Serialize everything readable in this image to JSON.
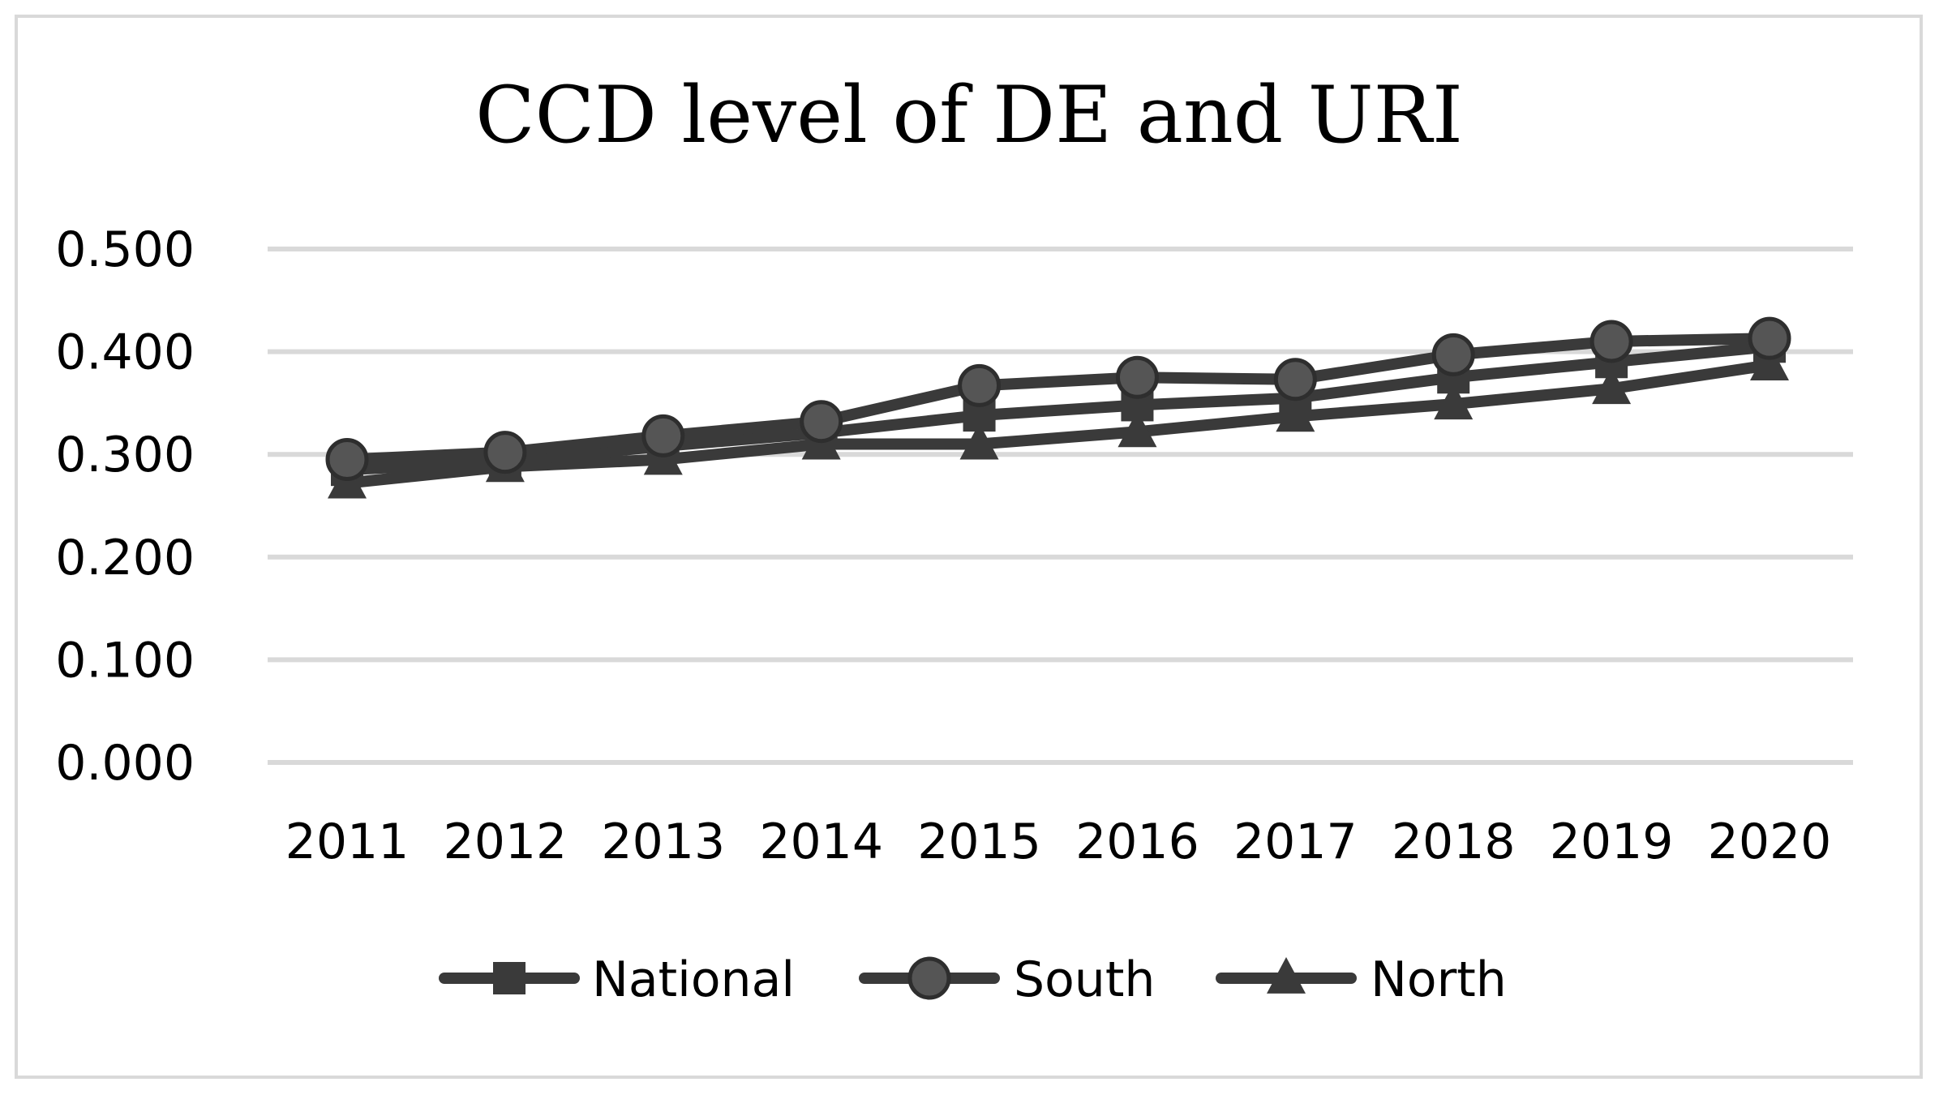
{
  "chart_data": {
    "type": "line",
    "title": "CCD level of DE and URI",
    "xlabel": "",
    "ylabel": "",
    "categories": [
      "2011",
      "2012",
      "2013",
      "2014",
      "2015",
      "2016",
      "2017",
      "2018",
      "2019",
      "2020"
    ],
    "y_ticks": [
      "0.000",
      "0.100",
      "0.200",
      "0.300",
      "0.400",
      "0.500"
    ],
    "ylim": [
      0,
      0.5
    ],
    "grid": true,
    "legend_position": "bottom",
    "series": [
      {
        "name": "National",
        "marker": "square",
        "color": "#3a3a3a",
        "values": [
          0.285,
          0.293,
          0.308,
          0.321,
          0.338,
          0.348,
          0.355,
          0.375,
          0.39,
          0.405
        ]
      },
      {
        "name": "South",
        "marker": "circle",
        "color": "#3a3a3a",
        "values": [
          0.295,
          0.302,
          0.318,
          0.332,
          0.367,
          0.375,
          0.373,
          0.397,
          0.41,
          0.413
        ]
      },
      {
        "name": "North",
        "marker": "triangle",
        "color": "#3a3a3a",
        "values": [
          0.272,
          0.288,
          0.295,
          0.31,
          0.31,
          0.322,
          0.337,
          0.349,
          0.364,
          0.387
        ]
      }
    ]
  }
}
